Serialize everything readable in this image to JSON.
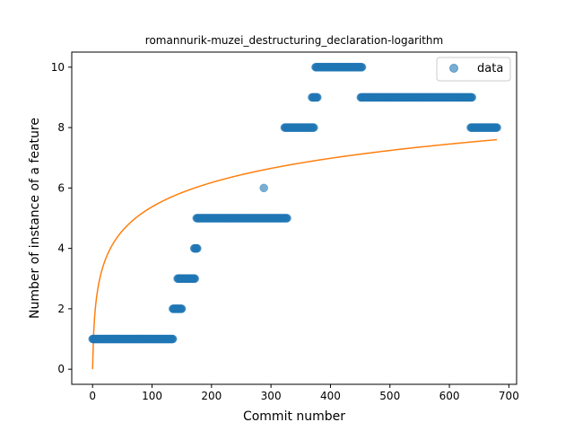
{
  "chart_data": {
    "type": "scatter",
    "title": "romannurik-muzei_destructuring_declaration-logarithm",
    "xlabel": "Commit number",
    "ylabel": "Number of instance of a feature",
    "xlim": [
      -35,
      713
    ],
    "ylim": [
      -0.5,
      10.5
    ],
    "xticks": [
      0,
      100,
      200,
      300,
      400,
      500,
      600,
      700
    ],
    "yticks": [
      0,
      2,
      4,
      6,
      8,
      10
    ],
    "grid": false,
    "legend": {
      "placement": "top-right",
      "entries": [
        "data"
      ]
    },
    "colors": {
      "data": "#1f77b4",
      "fit": "#ff7f0e"
    },
    "series": [
      {
        "name": "data",
        "kind": "scatter",
        "segments": [
          {
            "x_start": 0,
            "x_end": 135,
            "y": 1
          },
          {
            "x_start": 135,
            "x_end": 150,
            "y": 2
          },
          {
            "x_start": 143,
            "x_end": 172,
            "y": 3
          },
          {
            "x_start": 171,
            "x_end": 176,
            "y": 4
          },
          {
            "x_start": 175,
            "x_end": 327,
            "y": 5
          },
          {
            "x_start": 288,
            "x_end": 288,
            "y": 6
          },
          {
            "x_start": 323,
            "x_end": 372,
            "y": 8
          },
          {
            "x_start": 369,
            "x_end": 378,
            "y": 9
          },
          {
            "x_start": 375,
            "x_end": 453,
            "y": 10
          },
          {
            "x_start": 451,
            "x_end": 638,
            "y": 9
          },
          {
            "x_start": 636,
            "x_end": 680,
            "y": 8
          }
        ]
      },
      {
        "kind": "line",
        "fit": {
          "form": "log",
          "a": 1.165,
          "b": 1.0,
          "x_start": 0,
          "x_end": 680
        }
      }
    ]
  }
}
